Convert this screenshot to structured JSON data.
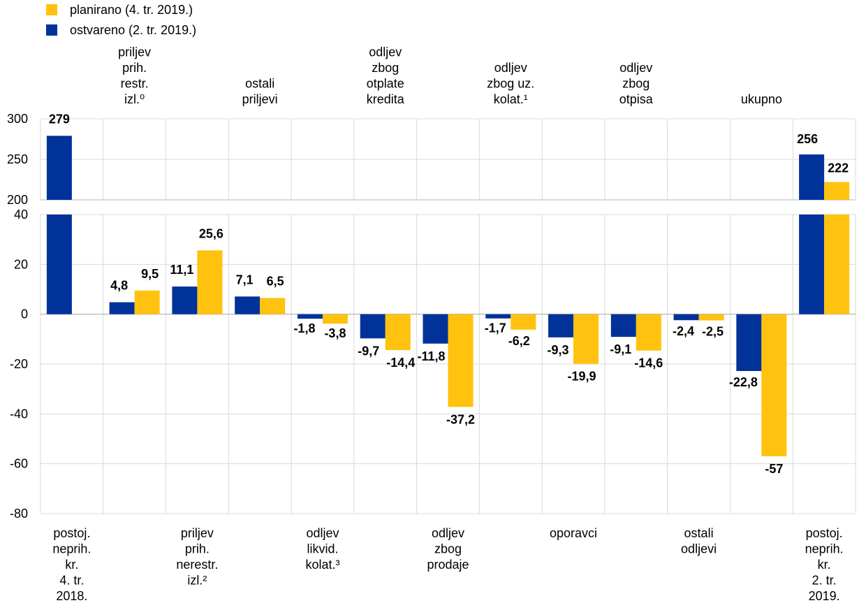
{
  "legend": {
    "planned": {
      "label": "planirano (4. tr. 2019.)",
      "color": "#FFC20E"
    },
    "actual": {
      "label": "ostvareno (2. tr. 2019.)",
      "color": "#003299"
    }
  },
  "chart_data": {
    "type": "bar",
    "categories": [
      {
        "label": [
          "postoj.",
          "neprih.",
          "kr.",
          "4. tr.",
          "2018."
        ],
        "position": "bottom"
      },
      {
        "label": [
          "priljev",
          "prih.",
          "restr.",
          "izl.⁰"
        ],
        "position": "top"
      },
      {
        "label": [
          "priljev",
          "prih.",
          "nerestr.",
          "izl.²"
        ],
        "position": "bottom"
      },
      {
        "label": [
          "ostali",
          "priljevi"
        ],
        "position": "top"
      },
      {
        "label": [
          "odljev",
          "likvid.",
          "kolat.³"
        ],
        "position": "bottom"
      },
      {
        "label": [
          "odljev",
          "zbog",
          "otplate",
          "kredita"
        ],
        "position": "top"
      },
      {
        "label": [
          "odljev",
          "zbog",
          "prodaje"
        ],
        "position": "bottom"
      },
      {
        "label": [
          "odljev",
          "zbog uz.",
          "kolat.¹"
        ],
        "position": "top"
      },
      {
        "label": [
          "oporavci"
        ],
        "position": "bottom"
      },
      {
        "label": [
          "odljev",
          "zbog",
          "otpisa"
        ],
        "position": "top"
      },
      {
        "label": [
          "ostali",
          "odljevi"
        ],
        "position": "bottom"
      },
      {
        "label": [
          "ukupno"
        ],
        "position": "top"
      },
      {
        "label": [
          "postoj.",
          "neprih.",
          "kr.",
          "2. tr.",
          "2019."
        ],
        "position": "bottom"
      }
    ],
    "series": [
      {
        "name": "ostvareno (2. tr. 2019.)",
        "color": "#003299",
        "values": [
          279,
          4.8,
          11.1,
          7.1,
          -1.8,
          -9.7,
          -11.8,
          -1.7,
          -9.3,
          -9.1,
          -2.4,
          -22.8,
          256
        ],
        "labels": [
          "279",
          "4,8",
          "11,1",
          "7,1",
          "-1,8",
          "-9,7",
          "-11,8",
          "-1,7",
          "-9,3",
          "-9,1",
          "-2,4",
          "-22,8",
          "256"
        ]
      },
      {
        "name": "planirano (4. tr. 2019.)",
        "color": "#FFC20E",
        "values": [
          null,
          9.5,
          25.6,
          6.5,
          -3.8,
          -14.4,
          -37.2,
          -6.2,
          -19.9,
          -14.6,
          -2.5,
          -57,
          222
        ],
        "labels": [
          null,
          "9,5",
          "25,6",
          "6,5",
          "-3,8",
          "-14,4",
          "-37,2",
          "-6,2",
          "-19,9",
          "-14,6",
          "-2,5",
          "-57",
          "222"
        ]
      }
    ],
    "axis_upper": {
      "range": [
        200,
        300
      ],
      "ticks": [
        "200",
        "250",
        "300"
      ]
    },
    "axis_lower": {
      "range": [
        -80,
        40
      ],
      "ticks": [
        "-80",
        "-60",
        "-40",
        "-20",
        "0",
        "20",
        "40"
      ]
    },
    "grid": true
  }
}
